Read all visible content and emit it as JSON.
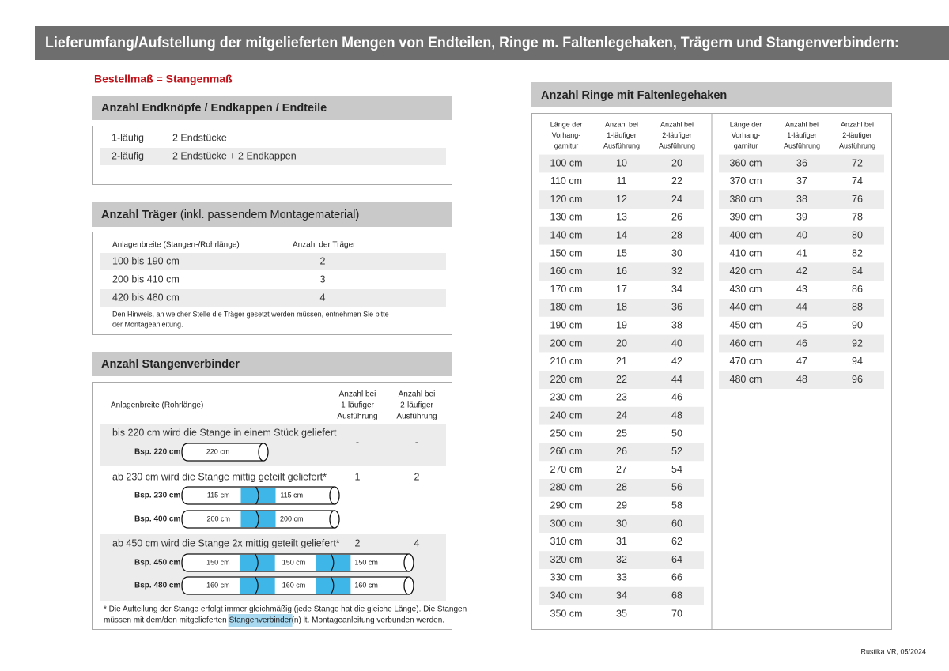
{
  "header": {
    "title": "Lieferumfang/Aufstellung der mitgelieferten Mengen von Endteilen, Ringe m. Faltenlegehaken, Trägern und Stangenverbindern:"
  },
  "subtitle": "Bestellmaß = Stangenmaß",
  "endteile": {
    "title": "Anzahl Endknöpfe / Endkappen / Endteile",
    "rows": [
      [
        "1-läufig",
        "2 Endstücke"
      ],
      [
        "2-läufig",
        "2 Endstücke + 2 Endkappen"
      ]
    ]
  },
  "traeger": {
    "title": "Anzahl Träger",
    "title_note": "(inkl. passendem Montagematerial)",
    "columns": [
      "Anlagenbreite (Stangen-/Rohrlänge)",
      "Anzahl der Träger"
    ],
    "rows": [
      [
        "100 bis 190 cm",
        "2"
      ],
      [
        "200 bis 410 cm",
        "3"
      ],
      [
        "420 bis 480 cm",
        "4"
      ]
    ],
    "note": [
      "Den Hinweis, an welcher Stelle die Träger gesetzt werden müssen, entnehmen Sie bitte",
      "der Montageanleitung."
    ]
  },
  "verbinder": {
    "title": "Anzahl Stangenverbinder",
    "columns": {
      "width": "Anlagenbreite (Rohrlänge)",
      "single": [
        "Anzahl bei",
        "1-läufiger",
        "Ausführung"
      ],
      "double": [
        "Anzahl bei",
        "2-läufiger",
        "Ausführung"
      ]
    },
    "groups": [
      {
        "text": "bis 220 cm wird die Stange in einem Stück geliefert",
        "count_1": "-",
        "count_2": "-",
        "examples": [
          {
            "label": "Bsp. 220 cm",
            "segments": [
              "220 cm"
            ]
          }
        ]
      },
      {
        "text": "ab 230 cm wird die Stange mittig geteilt geliefert*",
        "count_1": "1",
        "count_2": "2",
        "examples": [
          {
            "label": "Bsp. 230 cm",
            "segments": [
              "115 cm",
              "115 cm"
            ]
          },
          {
            "label": "Bsp. 400 cm",
            "segments": [
              "200 cm",
              "200 cm"
            ]
          }
        ]
      },
      {
        "text": "ab 450 cm wird die Stange 2x mittig geteilt geliefert*",
        "count_1": "2",
        "count_2": "4",
        "examples": [
          {
            "label": "Bsp. 450 cm",
            "segments": [
              "150 cm",
              "150 cm",
              "150 cm"
            ]
          },
          {
            "label": "Bsp. 480 cm",
            "segments": [
              "160 cm",
              "160 cm",
              "160 cm"
            ]
          }
        ]
      }
    ],
    "footnote": {
      "line1": "* Die Aufteilung der Stange erfolgt immer gleichmäßig (jede Stange hat die gleiche Länge). Die Stangen",
      "line2_before": "müssen mit dem/den mitgelieferten",
      "highlight": "Stangenverbinder",
      "line2_after": "(n) lt. Montageanleitung verbunden werden."
    }
  },
  "ringe": {
    "title": "Anzahl Ringe mit Faltenlegehaken",
    "tables": [
      {
        "columns": [
          [
            "Länge der",
            "Vorhang-",
            "garnitur"
          ],
          [
            "Anzahl bei",
            "1-läufiger",
            "Ausführung"
          ],
          [
            "Anzahl bei",
            "2-läufiger",
            "Ausführung"
          ]
        ],
        "rows": [
          [
            "100 cm",
            "10",
            "20"
          ],
          [
            "110 cm",
            "11",
            "22"
          ],
          [
            "120 cm",
            "12",
            "24"
          ],
          [
            "130 cm",
            "13",
            "26"
          ],
          [
            "140 cm",
            "14",
            "28"
          ],
          [
            "150 cm",
            "15",
            "30"
          ],
          [
            "160 cm",
            "16",
            "32"
          ],
          [
            "170 cm",
            "17",
            "34"
          ],
          [
            "180 cm",
            "18",
            "36"
          ],
          [
            "190 cm",
            "19",
            "38"
          ],
          [
            "200 cm",
            "20",
            "40"
          ],
          [
            "210 cm",
            "21",
            "42"
          ],
          [
            "220 cm",
            "22",
            "44"
          ],
          [
            "230 cm",
            "23",
            "46"
          ],
          [
            "240 cm",
            "24",
            "48"
          ],
          [
            "250 cm",
            "25",
            "50"
          ],
          [
            "260 cm",
            "26",
            "52"
          ],
          [
            "270 cm",
            "27",
            "54"
          ],
          [
            "280 cm",
            "28",
            "56"
          ],
          [
            "290 cm",
            "29",
            "58"
          ],
          [
            "300 cm",
            "30",
            "60"
          ],
          [
            "310 cm",
            "31",
            "62"
          ],
          [
            "320 cm",
            "32",
            "64"
          ],
          [
            "330 cm",
            "33",
            "66"
          ],
          [
            "340 cm",
            "34",
            "68"
          ],
          [
            "350 cm",
            "35",
            "70"
          ]
        ]
      },
      {
        "columns": [
          [
            "Länge der",
            "Vorhang-",
            "garnitur"
          ],
          [
            "Anzahl bei",
            "1-läufiger",
            "Ausführung"
          ],
          [
            "Anzahl bei",
            "2-läufiger",
            "Ausführung"
          ]
        ],
        "rows": [
          [
            "360 cm",
            "36",
            "72"
          ],
          [
            "370 cm",
            "37",
            "74"
          ],
          [
            "380 cm",
            "38",
            "76"
          ],
          [
            "390 cm",
            "39",
            "78"
          ],
          [
            "400 cm",
            "40",
            "80"
          ],
          [
            "410 cm",
            "41",
            "82"
          ],
          [
            "420 cm",
            "42",
            "84"
          ],
          [
            "430 cm",
            "43",
            "86"
          ],
          [
            "440 cm",
            "44",
            "88"
          ],
          [
            "450 cm",
            "45",
            "90"
          ],
          [
            "460 cm",
            "46",
            "92"
          ],
          [
            "470 cm",
            "47",
            "94"
          ],
          [
            "480 cm",
            "48",
            "96"
          ]
        ]
      }
    ]
  },
  "footer": "Rustika VR, 05/2024"
}
